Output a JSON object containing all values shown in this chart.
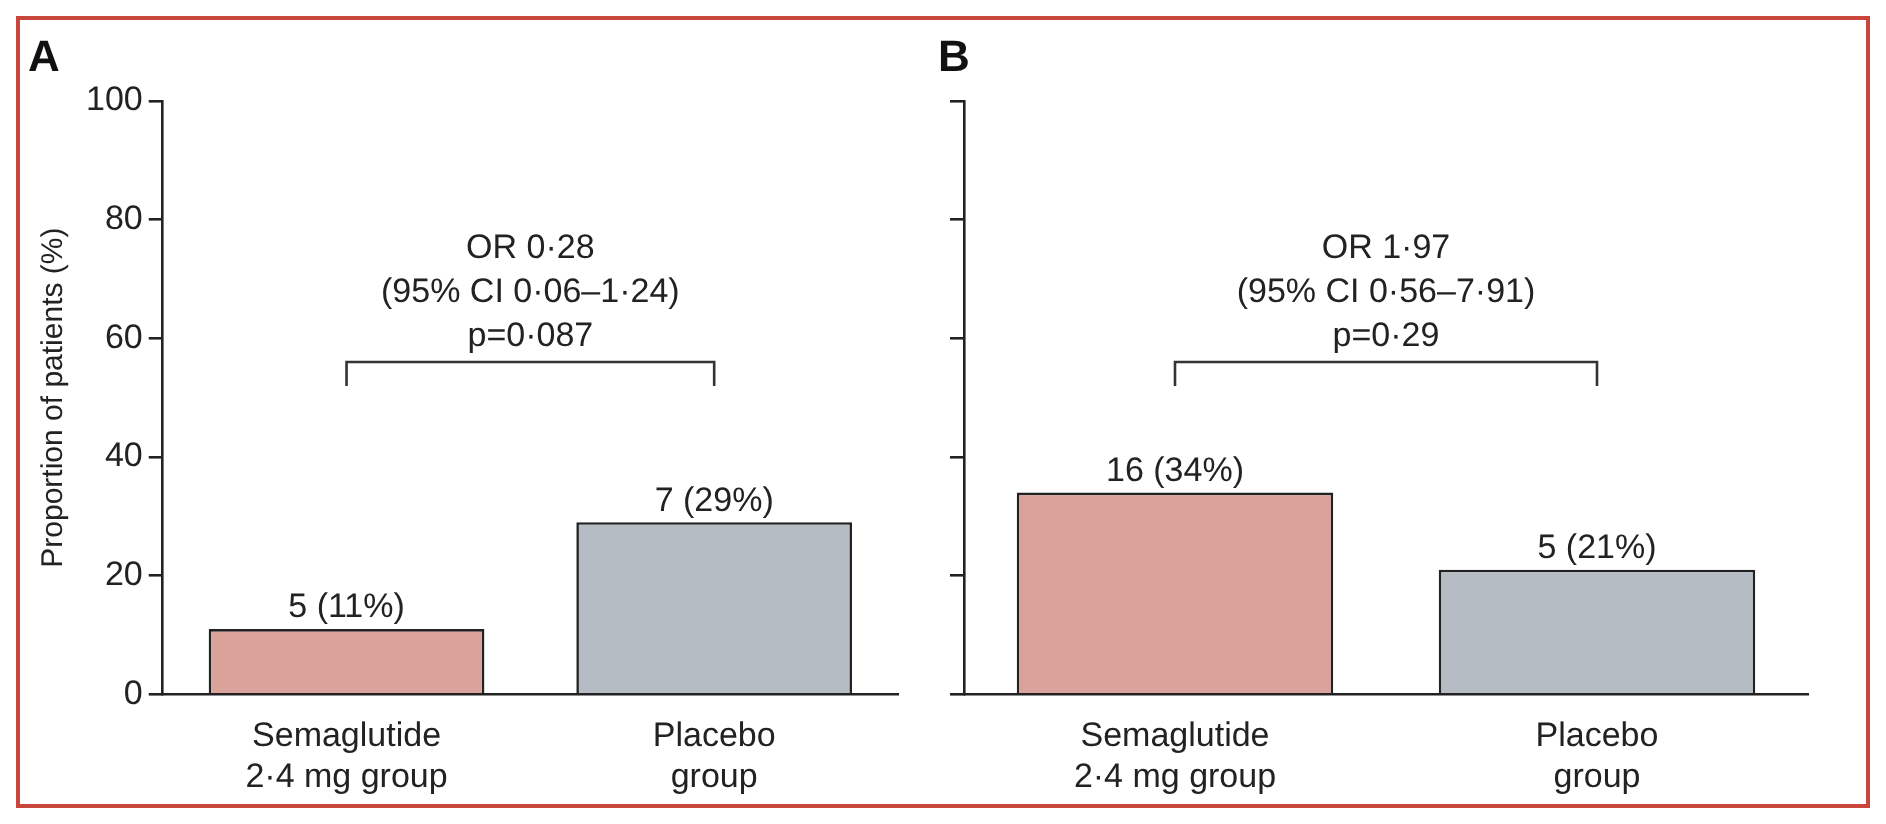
{
  "chart_data": [
    {
      "type": "bar",
      "title": "A",
      "ylabel": "Proportion of patients (%)",
      "categories": [
        "Semaglutide\n2·4 mg group",
        "Placebo\ngroup"
      ],
      "values": [
        11,
        29
      ],
      "colors": [
        "#d9a29b",
        "#b5bcc3"
      ],
      "value_labels": [
        "5 (11%)",
        "7 (29%)"
      ],
      "ylim": [
        0,
        100
      ],
      "yticks": [
        0,
        20,
        40,
        60,
        80,
        100
      ],
      "grid": false,
      "legend": false,
      "annotations": [
        "OR 0·28",
        "(95% CI 0·06–1·24)",
        "p=0·087"
      ]
    },
    {
      "type": "bar",
      "title": "B",
      "categories": [
        "Semaglutide\n2·4 mg group",
        "Placebo\ngroup"
      ],
      "values": [
        34,
        21
      ],
      "colors": [
        "#d9a29b",
        "#b5bcc3"
      ],
      "value_labels": [
        "16 (34%)",
        "5 (21%)"
      ],
      "ylim": [
        0,
        100
      ],
      "yticks": [
        0,
        20,
        40,
        60,
        80,
        100
      ],
      "tick_labels": "x",
      "grid": false,
      "legend": false,
      "annotations": [
        "OR 1·97",
        "(95% CI 0·56–7·91)",
        "p=0·29"
      ]
    }
  ]
}
